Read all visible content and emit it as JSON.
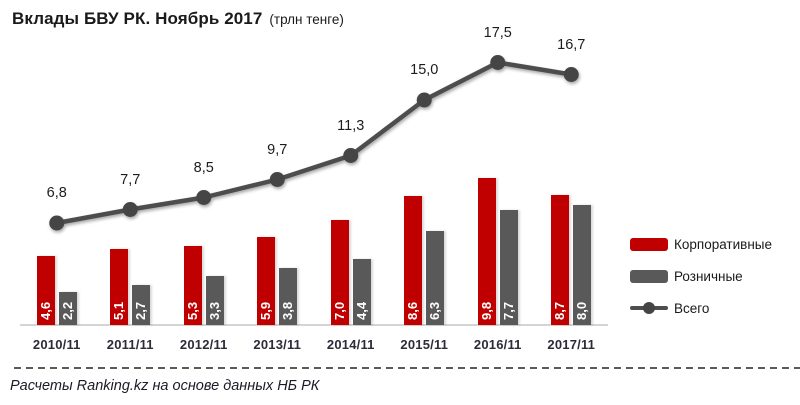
{
  "header": {
    "title": "Вклады БВУ РК. Ноябрь 2017",
    "subtitle": "(трлн тенге)"
  },
  "footer": {
    "source": "Расчеты Ranking.kz на основе данных НБ РК"
  },
  "chart_data": {
    "type": "bar",
    "title": "Вклады БВУ РК. Ноябрь 2017",
    "subtitle": "(трлн тенге)",
    "xlabel": "",
    "ylabel": "",
    "ylim": [
      0,
      19
    ],
    "grid": false,
    "legend_position": "right",
    "decimal_separator": ",",
    "value_labels": true,
    "categories": [
      "2010/11",
      "2011/11",
      "2012/11",
      "2013/11",
      "2014/11",
      "2015/11",
      "2016/11",
      "2017/11"
    ],
    "series": [
      {
        "name": "Корпоративные",
        "type": "bar",
        "color": "#c00000",
        "values": [
          4.6,
          5.1,
          5.3,
          5.9,
          7.0,
          8.6,
          9.8,
          8.7
        ]
      },
      {
        "name": "Розничные",
        "type": "bar",
        "color": "#595959",
        "values": [
          2.2,
          2.7,
          3.3,
          3.8,
          4.4,
          6.3,
          7.7,
          8.0
        ]
      },
      {
        "name": "Всего",
        "type": "line",
        "color": "#4d4d4d",
        "values": [
          6.8,
          7.7,
          8.5,
          9.7,
          11.3,
          15.0,
          17.5,
          16.7
        ]
      }
    ]
  }
}
